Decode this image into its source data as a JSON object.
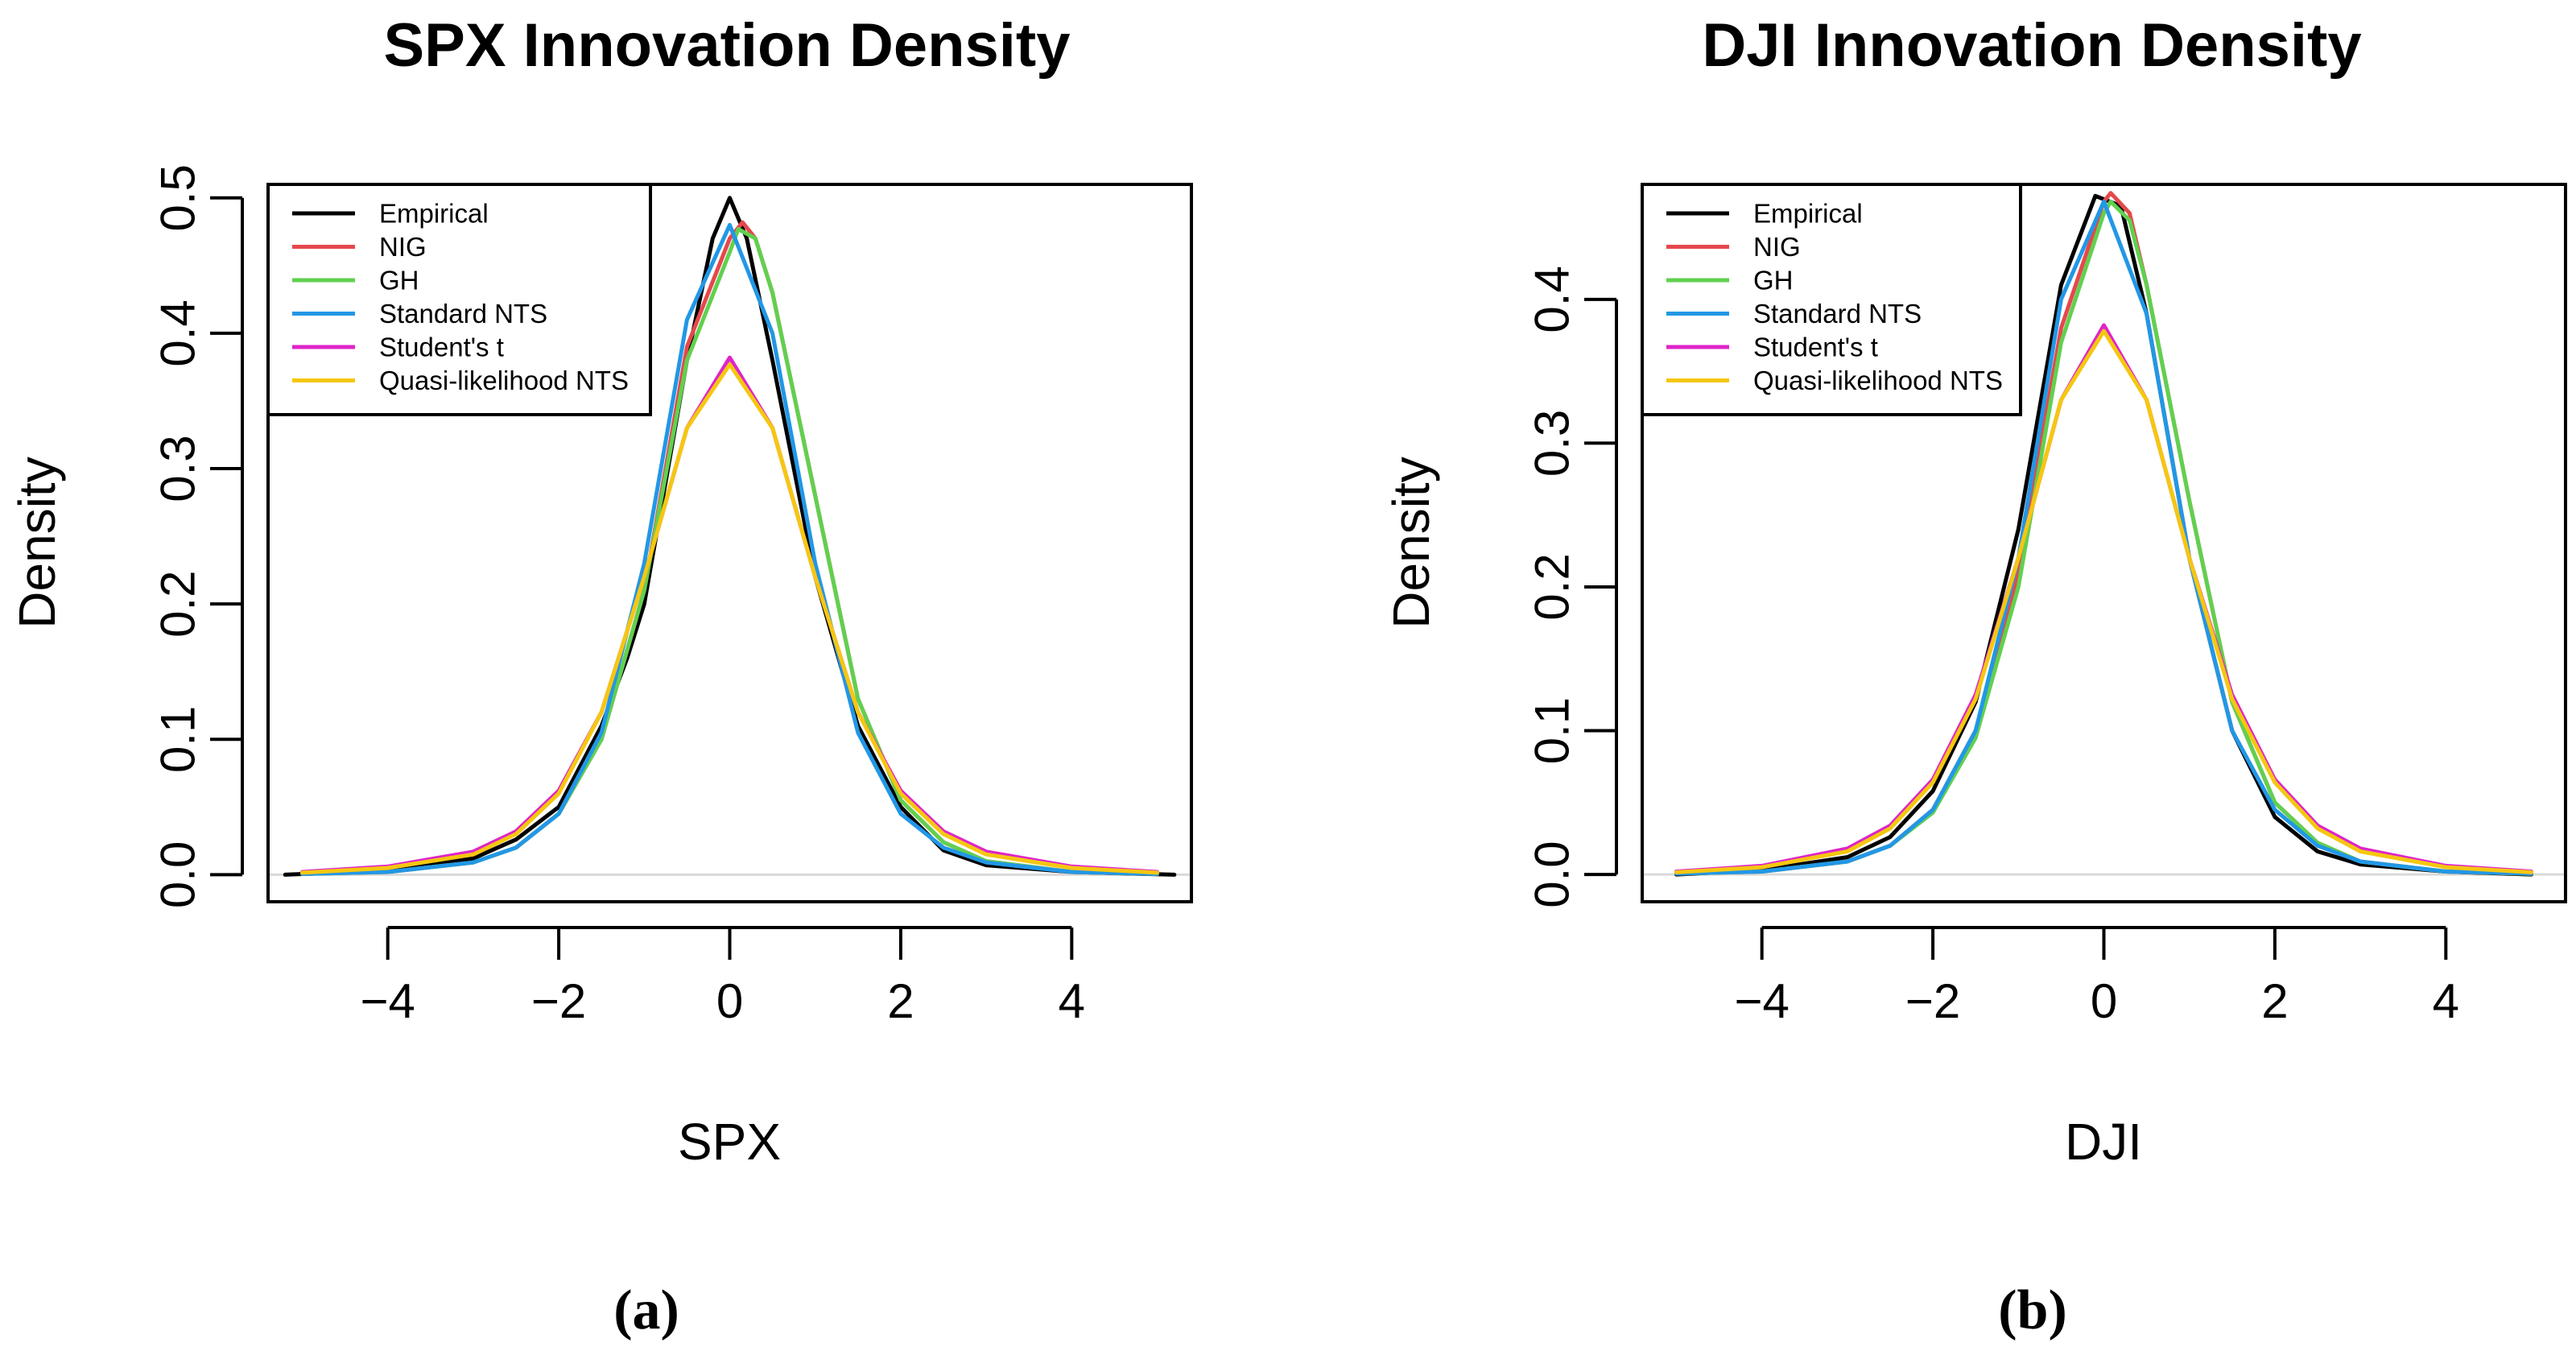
{
  "chart_data": [
    {
      "type": "line",
      "title": "SPX Innovation Density",
      "xlabel": "SPX",
      "ylabel": "Density",
      "caption": "(a)",
      "xlim": [
        -5.4,
        5.4
      ],
      "ylim": [
        -0.02,
        0.51
      ],
      "xticks": [
        -4,
        -2,
        0,
        2,
        4
      ],
      "xtick_labels": [
        "−4",
        "−2",
        "0",
        "2",
        "4"
      ],
      "yticks": [
        0.0,
        0.1,
        0.2,
        0.3,
        0.4,
        0.5
      ],
      "ytick_labels": [
        "0.0",
        "0.1",
        "0.2",
        "0.3",
        "0.4",
        "0.5"
      ],
      "legend_position": "top-left",
      "baseline": 0,
      "series": [
        {
          "name": "Empirical",
          "color": "#000000",
          "x": [
            -5.2,
            -4,
            -3,
            -2.5,
            -2,
            -1.5,
            -1.2,
            -1,
            -0.5,
            -0.2,
            0,
            0.2,
            0.5,
            1,
            1.5,
            2,
            2.5,
            3,
            4,
            5.2
          ],
          "y": [
            0.0,
            0.003,
            0.012,
            0.026,
            0.05,
            0.11,
            0.16,
            0.2,
            0.38,
            0.47,
            0.5,
            0.47,
            0.38,
            0.22,
            0.11,
            0.05,
            0.018,
            0.007,
            0.002,
            0.0
          ]
        },
        {
          "name": "NIG",
          "color": "#E5484D",
          "x": [
            -5,
            -4,
            -3,
            -2.5,
            -2,
            -1.5,
            -1,
            -0.5,
            0,
            0.15,
            0.3,
            0.5,
            1,
            1.5,
            2,
            2.5,
            3,
            4,
            5
          ],
          "y": [
            0.0006,
            0.002,
            0.009,
            0.02,
            0.045,
            0.1,
            0.21,
            0.39,
            0.47,
            0.482,
            0.47,
            0.43,
            0.28,
            0.13,
            0.055,
            0.024,
            0.01,
            0.002,
            0.0005
          ]
        },
        {
          "name": "GH",
          "color": "#61D04F",
          "x": [
            -5,
            -4,
            -3,
            -2.5,
            -2,
            -1.5,
            -1,
            -0.5,
            0,
            0.1,
            0.3,
            0.5,
            1,
            1.5,
            2,
            2.5,
            3,
            4,
            5
          ],
          "y": [
            0.0006,
            0.002,
            0.009,
            0.02,
            0.045,
            0.1,
            0.21,
            0.38,
            0.46,
            0.477,
            0.47,
            0.43,
            0.28,
            0.13,
            0.055,
            0.024,
            0.01,
            0.002,
            0.0005
          ]
        },
        {
          "name": "Standard NTS",
          "color": "#2297E6",
          "x": [
            -5,
            -4,
            -3,
            -2.5,
            -2,
            -1.5,
            -1,
            -0.5,
            0,
            0.5,
            1,
            1.5,
            2,
            2.5,
            3,
            4,
            5
          ],
          "y": [
            0.0006,
            0.002,
            0.009,
            0.02,
            0.045,
            0.105,
            0.23,
            0.41,
            0.48,
            0.4,
            0.23,
            0.105,
            0.045,
            0.02,
            0.009,
            0.002,
            0.0006
          ]
        },
        {
          "name": "Student's t",
          "color": "#DF24C9",
          "x": [
            -5,
            -4,
            -3,
            -2.5,
            -2,
            -1.5,
            -1,
            -0.5,
            0,
            0.5,
            1,
            1.5,
            2,
            2.5,
            3,
            4,
            5
          ],
          "y": [
            0.002,
            0.006,
            0.017,
            0.032,
            0.062,
            0.12,
            0.22,
            0.33,
            0.382,
            0.33,
            0.22,
            0.12,
            0.062,
            0.032,
            0.017,
            0.006,
            0.002
          ]
        },
        {
          "name": "Quasi-likelihood NTS",
          "color": "#F5C710",
          "x": [
            -5,
            -4,
            -3,
            -2.5,
            -2,
            -1.5,
            -1,
            -0.5,
            0,
            0.5,
            1,
            1.5,
            2,
            2.5,
            3,
            4,
            5
          ],
          "y": [
            0.0015,
            0.005,
            0.015,
            0.03,
            0.06,
            0.12,
            0.22,
            0.33,
            0.377,
            0.33,
            0.22,
            0.12,
            0.06,
            0.03,
            0.015,
            0.005,
            0.0015
          ]
        }
      ]
    },
    {
      "type": "line",
      "title": "DJI Innovation Density",
      "xlabel": "DJI",
      "ylabel": "Density",
      "caption": "(b)",
      "xlim": [
        -5.4,
        5.4
      ],
      "ylim": [
        -0.019,
        0.48
      ],
      "xticks": [
        -4,
        -2,
        0,
        2,
        4
      ],
      "xtick_labels": [
        "−4",
        "−2",
        "0",
        "2",
        "4"
      ],
      "yticks": [
        0.0,
        0.1,
        0.2,
        0.3,
        0.4
      ],
      "ytick_labels": [
        "0.0",
        "0.1",
        "0.2",
        "0.3",
        "0.4"
      ],
      "legend_position": "top-left",
      "baseline": 0,
      "series": [
        {
          "name": "Empirical",
          "color": "#000000",
          "x": [
            -5,
            -4,
            -3,
            -2.5,
            -2,
            -1.5,
            -1,
            -0.5,
            -0.1,
            0.2,
            0.5,
            1,
            1.5,
            2,
            2.5,
            3,
            4,
            5
          ],
          "y": [
            0.0,
            0.003,
            0.012,
            0.026,
            0.058,
            0.12,
            0.24,
            0.41,
            0.472,
            0.465,
            0.39,
            0.22,
            0.1,
            0.04,
            0.016,
            0.007,
            0.002,
            0.0
          ]
        },
        {
          "name": "NIG",
          "color": "#E5484D",
          "x": [
            -5,
            -4,
            -3,
            -2.5,
            -2,
            -1.5,
            -1,
            -0.5,
            0,
            0.08,
            0.3,
            0.5,
            1,
            1.5,
            2,
            2.5,
            3,
            4,
            5
          ],
          "y": [
            0.0006,
            0.002,
            0.009,
            0.02,
            0.045,
            0.1,
            0.21,
            0.38,
            0.468,
            0.474,
            0.46,
            0.41,
            0.26,
            0.12,
            0.05,
            0.022,
            0.009,
            0.002,
            0.0005
          ]
        },
        {
          "name": "GH",
          "color": "#61D04F",
          "x": [
            -5,
            -4,
            -3,
            -2.5,
            -2,
            -1.5,
            -1,
            -0.5,
            0,
            0.08,
            0.3,
            0.5,
            1,
            1.5,
            2,
            2.5,
            3,
            4,
            5
          ],
          "y": [
            0.0006,
            0.002,
            0.009,
            0.02,
            0.043,
            0.095,
            0.2,
            0.37,
            0.46,
            0.468,
            0.455,
            0.41,
            0.26,
            0.12,
            0.05,
            0.022,
            0.009,
            0.002,
            0.0005
          ]
        },
        {
          "name": "Standard NTS",
          "color": "#2297E6",
          "x": [
            -5,
            -4,
            -3,
            -2.5,
            -2,
            -1.5,
            -1,
            -0.5,
            0,
            0.5,
            1,
            1.5,
            2,
            2.5,
            3,
            4,
            5
          ],
          "y": [
            0.0006,
            0.002,
            0.009,
            0.02,
            0.045,
            0.1,
            0.22,
            0.4,
            0.468,
            0.39,
            0.22,
            0.1,
            0.045,
            0.02,
            0.009,
            0.002,
            0.0006
          ]
        },
        {
          "name": "Student's t",
          "color": "#DF24C9",
          "x": [
            -5,
            -4,
            -3,
            -2.5,
            -2,
            -1.5,
            -1,
            -0.5,
            0,
            0.5,
            1,
            1.5,
            2,
            2.5,
            3,
            4,
            5
          ],
          "y": [
            0.002,
            0.006,
            0.018,
            0.034,
            0.066,
            0.125,
            0.22,
            0.33,
            0.382,
            0.33,
            0.22,
            0.125,
            0.066,
            0.034,
            0.018,
            0.006,
            0.002
          ]
        },
        {
          "name": "Quasi-likelihood NTS",
          "color": "#F5C710",
          "x": [
            -5,
            -4,
            -3,
            -2.5,
            -2,
            -1.5,
            -1,
            -0.5,
            0,
            0.5,
            1,
            1.5,
            2,
            2.5,
            3,
            4,
            5
          ],
          "y": [
            0.0015,
            0.005,
            0.016,
            0.032,
            0.064,
            0.122,
            0.22,
            0.33,
            0.378,
            0.33,
            0.22,
            0.122,
            0.064,
            0.032,
            0.016,
            0.005,
            0.0015
          ]
        }
      ]
    }
  ]
}
